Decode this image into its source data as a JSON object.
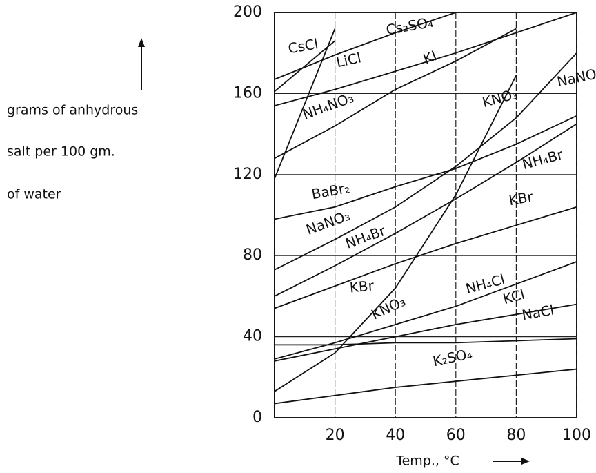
{
  "chart_data": {
    "type": "line",
    "x_label": "Temp., °C",
    "y_label": [
      "grams of anhydrous",
      "salt per 100 gm.",
      "of water"
    ],
    "x": [
      0,
      20,
      40,
      60,
      80,
      100
    ],
    "xlim": [
      0,
      100
    ],
    "xticks": [
      20,
      40,
      60,
      80,
      100
    ],
    "ylim": [
      0,
      200
    ],
    "yticks": [
      0,
      40,
      80,
      120,
      160,
      200
    ],
    "grid": true,
    "series": [
      {
        "name": "CsCl",
        "color": "#111111",
        "values": [
          161,
          186,
          null,
          null,
          null,
          null
        ]
      },
      {
        "name": "Cs₂SO₄",
        "color": "#111111",
        "values": [
          167,
          179,
          190,
          200,
          null,
          null
        ]
      },
      {
        "name": "LiCl",
        "color": "#111111",
        "values": [
          154,
          162,
          171,
          180,
          190,
          200
        ]
      },
      {
        "name": "KI",
        "color": "#111111",
        "values": [
          128,
          144,
          162,
          176,
          192,
          null
        ]
      },
      {
        "name": "NH₄NO₃",
        "color": "#111111",
        "values": [
          118,
          192,
          null,
          null,
          null,
          null
        ]
      },
      {
        "name": "KNO₃",
        "color": "#111111",
        "values": [
          13,
          32,
          64,
          110,
          169,
          null
        ]
      },
      {
        "name": "NaNO₃",
        "color": "#111111",
        "values": [
          73,
          88,
          104,
          124,
          148,
          180
        ]
      },
      {
        "name": "BaBr₂",
        "color": "#111111",
        "values": [
          98,
          104,
          114,
          123,
          135,
          149
        ]
      },
      {
        "name": "NH₄Br",
        "color": "#111111",
        "values": [
          60,
          75,
          91,
          108,
          126,
          145
        ]
      },
      {
        "name": "KBr",
        "color": "#111111",
        "values": [
          54,
          65,
          76,
          86,
          95,
          104
        ]
      },
      {
        "name": "NH₄Cl",
        "color": "#111111",
        "values": [
          29,
          37,
          46,
          55,
          66,
          77
        ]
      },
      {
        "name": "KCl",
        "color": "#111111",
        "values": [
          28,
          34,
          40,
          46,
          51,
          56
        ]
      },
      {
        "name": "NaCl",
        "color": "#111111",
        "values": [
          36,
          36,
          37,
          37,
          38,
          39
        ]
      },
      {
        "name": "K₂SO₄",
        "color": "#111111",
        "values": [
          7,
          11,
          15,
          18,
          21,
          24
        ]
      }
    ]
  }
}
